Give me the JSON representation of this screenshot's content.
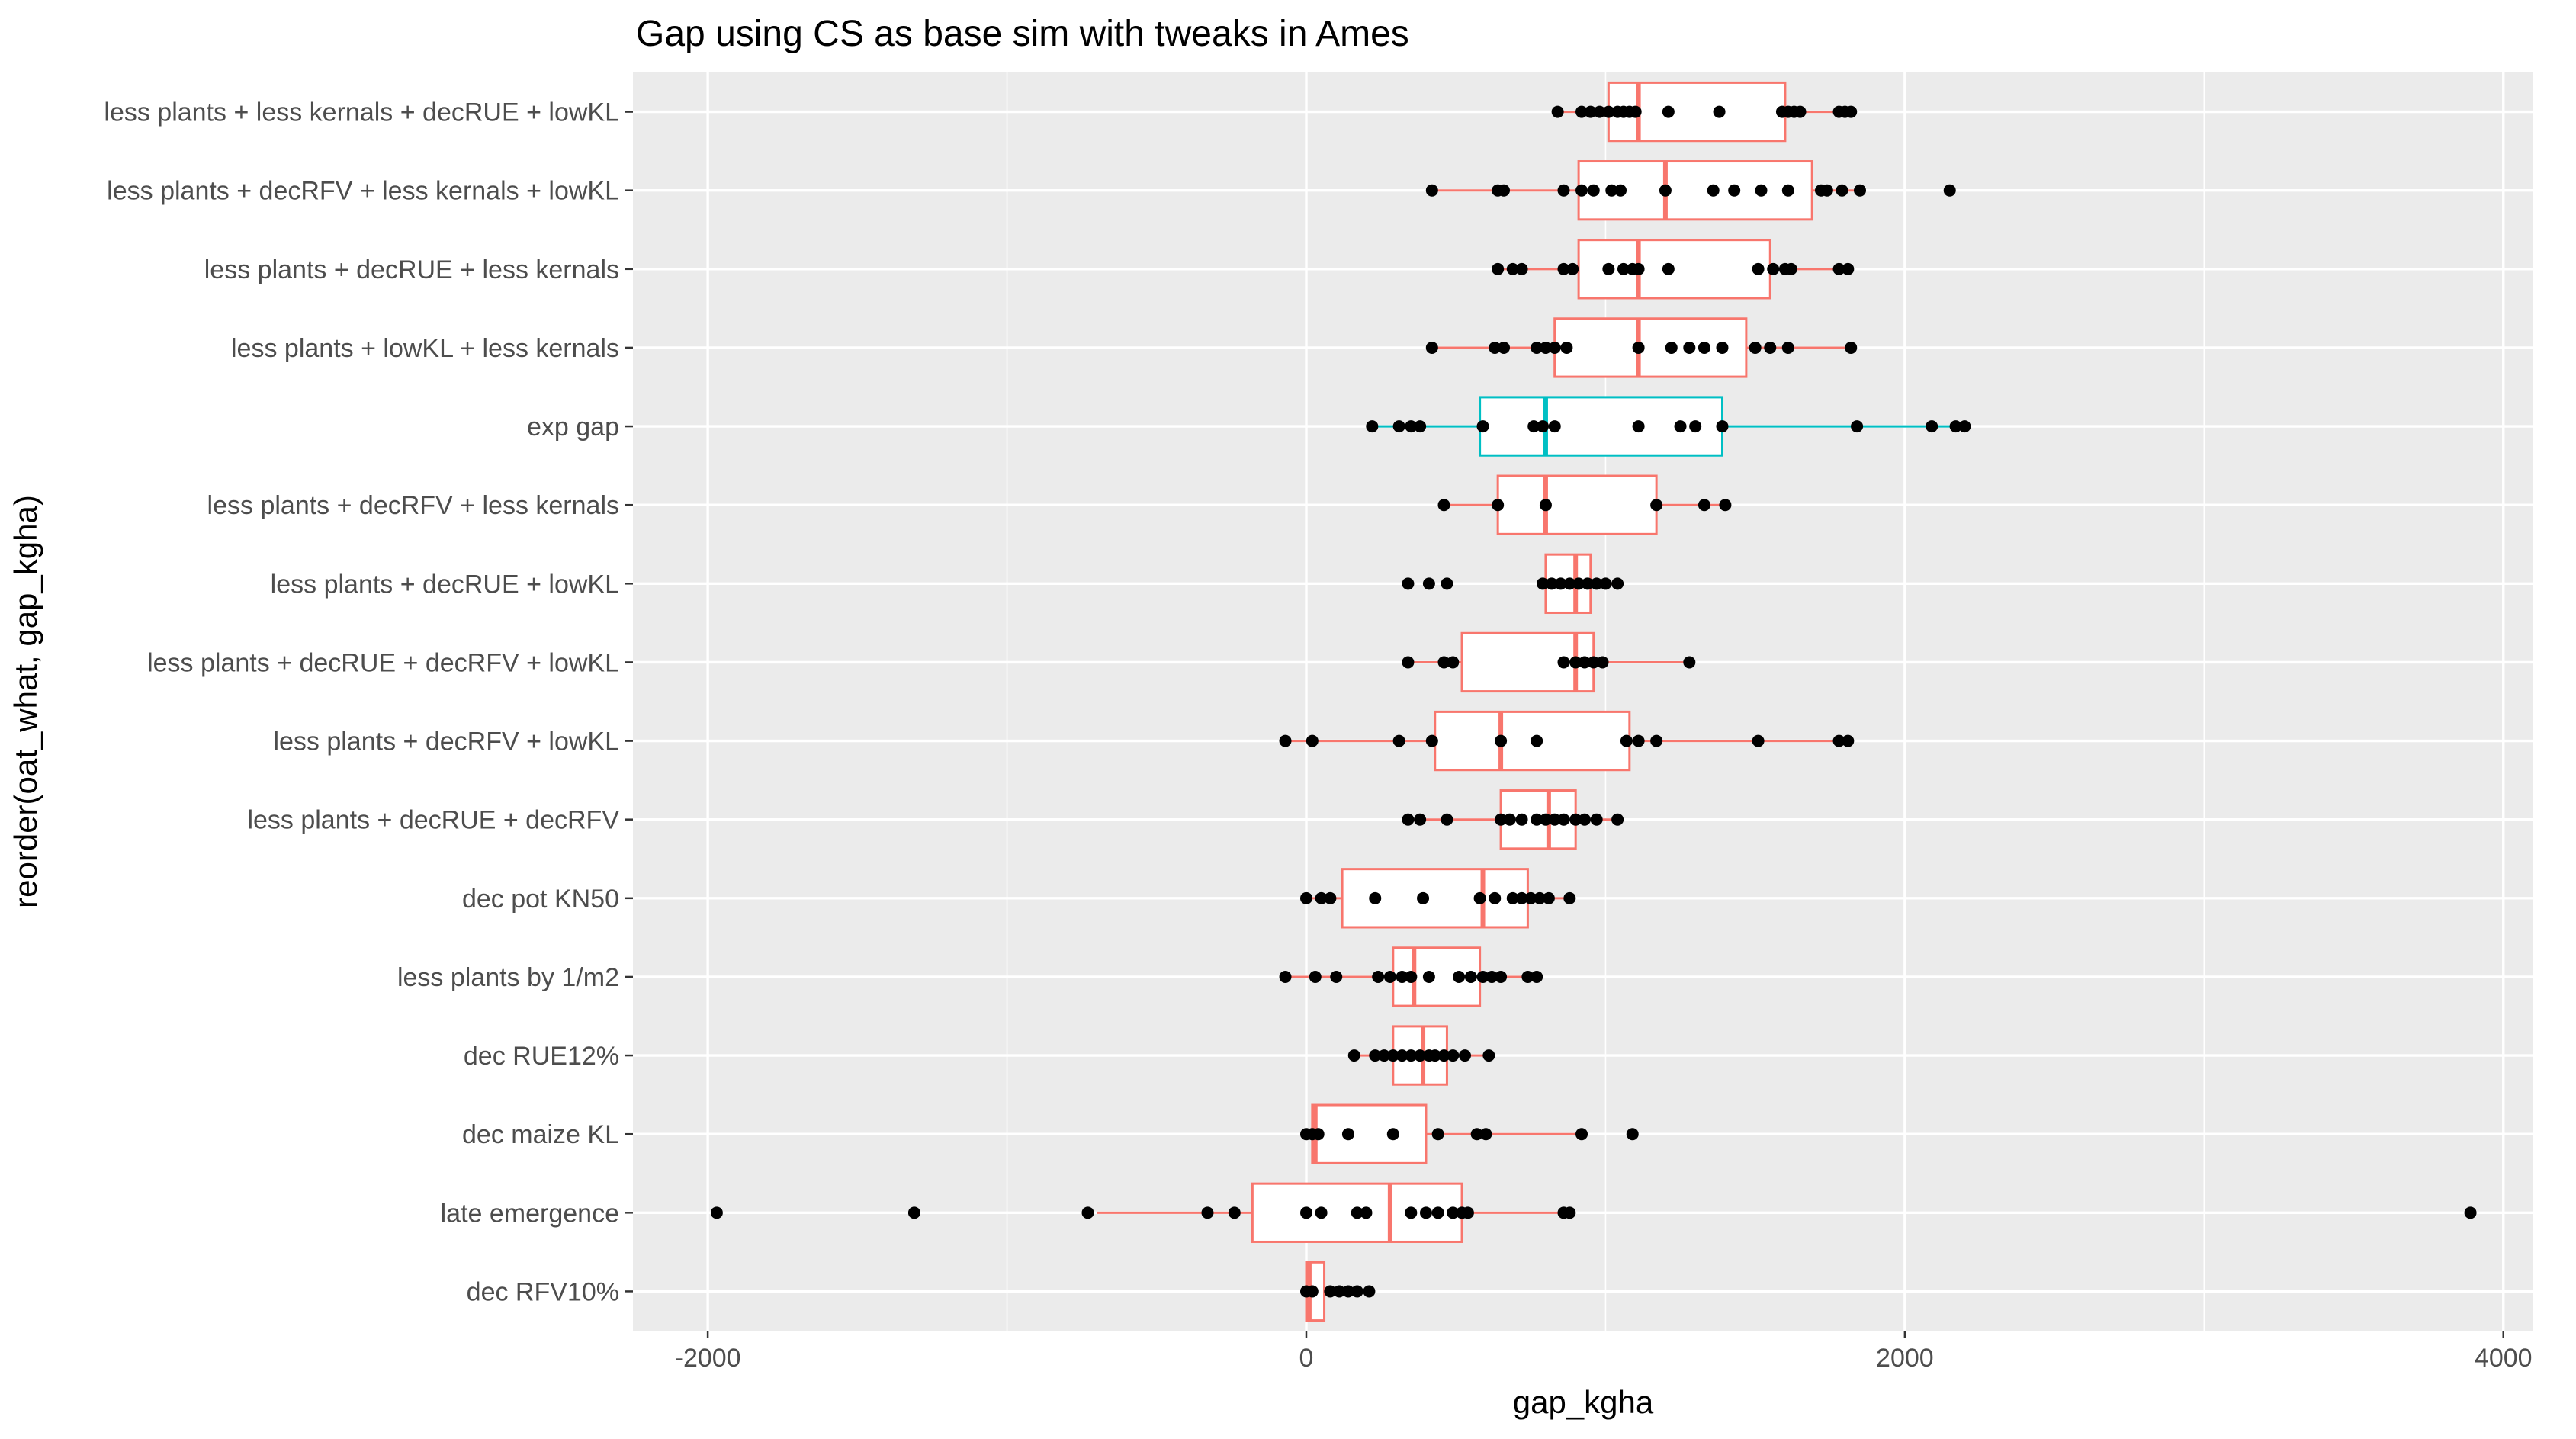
{
  "chart_data": {
    "type": "boxplot",
    "title": "Gap using CS as base sim with tweaks in Ames",
    "xlabel": "gap_kgha",
    "ylabel": "reorder(oat_what, gap_kgha)",
    "xlim": [
      -2250,
      4100
    ],
    "xticks": [
      -2000,
      0,
      2000,
      4000
    ],
    "grid": true,
    "colors": {
      "treatment": "#F8766D",
      "experiment": "#00BFC4",
      "point": "#000000",
      "panel": "#EBEBEB",
      "grid": "#FFFFFF"
    },
    "categories": [
      {
        "label": "less plants  + less kernals + decRUE + lowKL",
        "group": "treatment",
        "box": {
          "whisker_low": 840,
          "q1": 1010,
          "median": 1110,
          "q3": 1600,
          "whisker_high": 1810
        },
        "points": [
          840,
          920,
          950,
          980,
          1010,
          1040,
          1060,
          1080,
          1100,
          1210,
          1380,
          1590,
          1610,
          1630,
          1650,
          1780,
          1800,
          1820
        ]
      },
      {
        "label": "less plants + decRFV + less kernals + lowKL",
        "group": "treatment",
        "box": {
          "whisker_low": 420,
          "q1": 910,
          "median": 1200,
          "q3": 1690,
          "whisker_high": 1850
        },
        "points": [
          420,
          640,
          660,
          860,
          920,
          960,
          1020,
          1050,
          1200,
          1360,
          1430,
          1520,
          1610,
          1720,
          1740,
          1790,
          1850,
          2150
        ]
      },
      {
        "label": "less plants + decRUE + less kernals",
        "group": "treatment",
        "box": {
          "whisker_low": 640,
          "q1": 910,
          "median": 1110,
          "q3": 1550,
          "whisker_high": 1810
        },
        "points": [
          640,
          690,
          720,
          860,
          890,
          1010,
          1060,
          1090,
          1110,
          1210,
          1510,
          1560,
          1600,
          1620,
          1780,
          1810
        ]
      },
      {
        "label": "less plants + lowKL + less kernals",
        "group": "treatment",
        "box": {
          "whisker_low": 420,
          "q1": 830,
          "median": 1110,
          "q3": 1470,
          "whisker_high": 1820
        },
        "points": [
          420,
          630,
          660,
          770,
          800,
          830,
          870,
          1110,
          1220,
          1280,
          1330,
          1390,
          1500,
          1550,
          1610,
          1820
        ]
      },
      {
        "label": "exp gap",
        "group": "experiment",
        "box": {
          "whisker_low": 220,
          "q1": 580,
          "median": 800,
          "q3": 1390,
          "whisker_high": 2200
        },
        "points": [
          220,
          310,
          350,
          380,
          590,
          760,
          790,
          830,
          1110,
          1250,
          1300,
          1390,
          1840,
          2090,
          2170,
          2200
        ]
      },
      {
        "label": "less plants + decRFV + less kernals",
        "group": "treatment",
        "box": {
          "whisker_low": 460,
          "q1": 640,
          "median": 800,
          "q3": 1170,
          "whisker_high": 1400
        },
        "points": [
          460,
          640,
          800,
          1170,
          1330,
          1400
        ]
      },
      {
        "label": "less plants + decRUE + lowKL",
        "group": "treatment",
        "box": {
          "whisker_low": 790,
          "q1": 800,
          "median": 900,
          "q3": 950,
          "whisker_high": 1040
        },
        "points": [
          340,
          410,
          470,
          790,
          820,
          850,
          880,
          910,
          940,
          970,
          1000,
          1040
        ]
      },
      {
        "label": "less plants + decRUE + decRFV + lowKL",
        "group": "treatment",
        "box": {
          "whisker_low": 340,
          "q1": 520,
          "median": 900,
          "q3": 960,
          "whisker_high": 1280
        },
        "points": [
          340,
          460,
          490,
          860,
          900,
          930,
          960,
          990,
          1280
        ]
      },
      {
        "label": "less plants + decRFV + lowKL",
        "group": "treatment",
        "box": {
          "whisker_low": -70,
          "q1": 430,
          "median": 650,
          "q3": 1080,
          "whisker_high": 1810
        },
        "points": [
          -70,
          20,
          310,
          420,
          650,
          770,
          1070,
          1110,
          1170,
          1510,
          1780,
          1810
        ]
      },
      {
        "label": "less plants + decRUE + decRFV",
        "group": "treatment",
        "box": {
          "whisker_low": 340,
          "q1": 650,
          "median": 810,
          "q3": 900,
          "whisker_high": 1040
        },
        "points": [
          340,
          380,
          470,
          650,
          680,
          720,
          770,
          800,
          830,
          860,
          900,
          930,
          970,
          1040
        ]
      },
      {
        "label": "dec pot KN50",
        "group": "treatment",
        "box": {
          "whisker_low": 0,
          "q1": 120,
          "median": 590,
          "q3": 740,
          "whisker_high": 880
        },
        "points": [
          0,
          50,
          80,
          230,
          390,
          580,
          630,
          690,
          720,
          750,
          780,
          810,
          880
        ]
      },
      {
        "label": "less plants by 1/m2",
        "group": "treatment",
        "box": {
          "whisker_low": -70,
          "q1": 290,
          "median": 360,
          "q3": 580,
          "whisker_high": 760
        },
        "points": [
          -70,
          30,
          100,
          240,
          280,
          320,
          350,
          410,
          510,
          550,
          590,
          620,
          650,
          740,
          770
        ]
      },
      {
        "label": "dec RUE12%",
        "group": "treatment",
        "box": {
          "whisker_low": 160,
          "q1": 290,
          "median": 390,
          "q3": 470,
          "whisker_high": 610
        },
        "points": [
          160,
          230,
          260,
          290,
          320,
          350,
          380,
          410,
          430,
          460,
          490,
          530,
          610
        ]
      },
      {
        "label": "dec maize KL",
        "group": "treatment",
        "box": {
          "whisker_low": 0,
          "q1": 20,
          "median": 30,
          "q3": 400,
          "whisker_high": 920
        },
        "points": [
          0,
          20,
          40,
          140,
          290,
          440,
          570,
          600,
          920,
          1090
        ]
      },
      {
        "label": "late emergence",
        "group": "treatment",
        "box": {
          "whisker_low": -700,
          "q1": -180,
          "median": 280,
          "q3": 520,
          "whisker_high": 880
        },
        "points": [
          -1970,
          -1310,
          -730,
          -330,
          -240,
          0,
          50,
          170,
          200,
          350,
          400,
          440,
          490,
          520,
          540,
          860,
          880,
          3890
        ]
      },
      {
        "label": "dec RFV10%",
        "group": "treatment",
        "box": {
          "whisker_low": 0,
          "q1": 0,
          "median": 10,
          "q3": 60,
          "whisker_high": 60
        },
        "points": [
          0,
          20,
          80,
          110,
          140,
          170,
          210
        ]
      }
    ]
  }
}
